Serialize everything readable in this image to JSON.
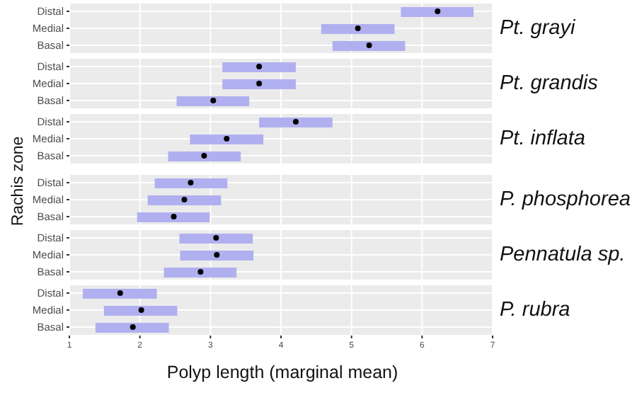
{
  "chart_data": [
    {
      "type": "bar",
      "orientation": "horizontal",
      "title": "Pt. grayi",
      "ylabel": "Rachis zone",
      "categories": [
        "Distal",
        "Medial",
        "Basal"
      ],
      "xlim": [
        1,
        7
      ],
      "xticks": [
        1,
        2,
        3,
        4,
        5,
        6,
        7
      ],
      "grid": true,
      "tick_labels": "y",
      "series": [
        {
          "color": "#b0b0f0",
          "base": [
            5.7,
            4.57,
            4.73
          ],
          "values": [
            1.03,
            1.04,
            1.03
          ]
        },
        {
          "type": "scatter",
          "color": "#000000",
          "marker": "circle",
          "x": [
            "Distal",
            "Medial",
            "Basal"
          ],
          "values": [
            6.22,
            5.09,
            5.25
          ]
        }
      ]
    },
    {
      "type": "bar",
      "orientation": "horizontal",
      "title": "Pt. grandis",
      "categories": [
        "Distal",
        "Medial",
        "Basal"
      ],
      "xlim": [
        1,
        7
      ],
      "xticks": [
        1,
        2,
        3,
        4,
        5,
        6,
        7
      ],
      "grid": true,
      "tick_labels": "y",
      "series": [
        {
          "color": "#b0b0f0",
          "base": [
            3.17,
            3.17,
            2.52
          ],
          "values": [
            1.04,
            1.04,
            1.03
          ]
        },
        {
          "type": "scatter",
          "color": "#000000",
          "marker": "circle",
          "x": [
            "Distal",
            "Medial",
            "Basal"
          ],
          "values": [
            3.69,
            3.69,
            3.04
          ]
        }
      ]
    },
    {
      "type": "bar",
      "orientation": "horizontal",
      "title": "Pt. inflata",
      "categories": [
        "Distal",
        "Medial",
        "Basal"
      ],
      "xlim": [
        1,
        7
      ],
      "xticks": [
        1,
        2,
        3,
        4,
        5,
        6,
        7
      ],
      "grid": true,
      "tick_labels": "y",
      "series": [
        {
          "color": "#b0b0f0",
          "base": [
            3.69,
            2.71,
            2.4
          ],
          "values": [
            1.04,
            1.04,
            1.03
          ]
        },
        {
          "type": "scatter",
          "color": "#000000",
          "marker": "circle",
          "x": [
            "Distal",
            "Medial",
            "Basal"
          ],
          "values": [
            4.21,
            3.23,
            2.91
          ]
        }
      ]
    },
    {
      "type": "bar",
      "orientation": "horizontal",
      "title": "P. phosphorea",
      "categories": [
        "Distal",
        "Medial",
        "Basal"
      ],
      "xlim": [
        1,
        7
      ],
      "xticks": [
        1,
        2,
        3,
        4,
        5,
        6,
        7
      ],
      "grid": true,
      "tick_labels": "y",
      "series": [
        {
          "color": "#b0b0f0",
          "base": [
            2.21,
            2.11,
            1.96
          ],
          "values": [
            1.03,
            1.04,
            1.03
          ]
        },
        {
          "type": "scatter",
          "color": "#000000",
          "marker": "circle",
          "x": [
            "Distal",
            "Medial",
            "Basal"
          ],
          "values": [
            2.72,
            2.63,
            2.48
          ]
        }
      ]
    },
    {
      "type": "bar",
      "orientation": "horizontal",
      "title": "Pennatula sp.",
      "categories": [
        "Distal",
        "Medial",
        "Basal"
      ],
      "xlim": [
        1,
        7
      ],
      "xticks": [
        1,
        2,
        3,
        4,
        5,
        6,
        7
      ],
      "grid": true,
      "tick_labels": "y",
      "series": [
        {
          "color": "#b0b0f0",
          "base": [
            2.56,
            2.57,
            2.34
          ],
          "values": [
            1.04,
            1.04,
            1.03
          ]
        },
        {
          "type": "scatter",
          "color": "#000000",
          "marker": "circle",
          "x": [
            "Distal",
            "Medial",
            "Basal"
          ],
          "values": [
            3.08,
            3.09,
            2.86
          ]
        }
      ]
    },
    {
      "type": "bar",
      "orientation": "horizontal",
      "title": "P. rubra",
      "xlabel": "Polyp length (marginal mean)",
      "categories": [
        "Distal",
        "Medial",
        "Basal"
      ],
      "xlim": [
        1,
        7
      ],
      "xticks": [
        1,
        2,
        3,
        4,
        5,
        6,
        7
      ],
      "grid": true,
      "series": [
        {
          "color": "#b0b0f0",
          "base": [
            1.19,
            1.49,
            1.37
          ],
          "values": [
            1.05,
            1.04,
            1.04
          ]
        },
        {
          "type": "scatter",
          "color": "#000000",
          "marker": "circle",
          "x": [
            "Distal",
            "Medial",
            "Basal"
          ],
          "values": [
            1.72,
            2.02,
            1.9
          ]
        }
      ]
    }
  ]
}
